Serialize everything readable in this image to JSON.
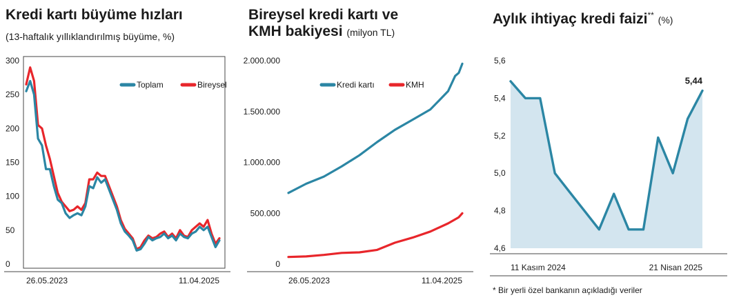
{
  "chart_data": [
    {
      "type": "line",
      "title": "Kredi kartı büyüme hızları",
      "subtitle": "(13-haftalık yıllıklandırılmış büyüme, %)",
      "ylim": [
        0,
        300
      ],
      "yticks": [
        "300",
        "250",
        "200",
        "150",
        "100",
        "50",
        "0"
      ],
      "xlim": [
        "2023-05-26",
        "2025-04-11"
      ],
      "xtick_labels": [
        "26.05.2023",
        "11.04.2025"
      ],
      "legend_position": "top-right",
      "grid": false,
      "series": [
        {
          "name": "Toplam",
          "color": "#2b86a4",
          "points": [
            [
              "2023-05-26",
              255
            ],
            [
              "2023-06-09",
              270
            ],
            [
              "2023-06-23",
              250
            ],
            [
              "2023-07-07",
              185
            ],
            [
              "2023-07-21",
              175
            ],
            [
              "2023-08-04",
              140
            ],
            [
              "2023-08-18",
              140
            ],
            [
              "2023-09-01",
              115
            ],
            [
              "2023-09-15",
              95
            ],
            [
              "2023-09-29",
              90
            ],
            [
              "2023-10-13",
              75
            ],
            [
              "2023-10-27",
              68
            ],
            [
              "2023-11-10",
              72
            ],
            [
              "2023-11-24",
              75
            ],
            [
              "2023-12-08",
              72
            ],
            [
              "2023-12-22",
              85
            ],
            [
              "2024-01-05",
              115
            ],
            [
              "2024-01-19",
              112
            ],
            [
              "2024-02-02",
              128
            ],
            [
              "2024-02-16",
              120
            ],
            [
              "2024-03-01",
              125
            ],
            [
              "2024-03-15",
              110
            ],
            [
              "2024-03-29",
              95
            ],
            [
              "2024-04-12",
              80
            ],
            [
              "2024-04-26",
              60
            ],
            [
              "2024-05-10",
              48
            ],
            [
              "2024-05-24",
              42
            ],
            [
              "2024-06-07",
              35
            ],
            [
              "2024-06-21",
              20
            ],
            [
              "2024-07-05",
              22
            ],
            [
              "2024-07-19",
              30
            ],
            [
              "2024-08-02",
              40
            ],
            [
              "2024-08-16",
              35
            ],
            [
              "2024-08-30",
              38
            ],
            [
              "2024-09-13",
              40
            ],
            [
              "2024-09-27",
              45
            ],
            [
              "2024-10-11",
              38
            ],
            [
              "2024-10-25",
              42
            ],
            [
              "2024-11-08",
              35
            ],
            [
              "2024-11-22",
              45
            ],
            [
              "2024-12-06",
              40
            ],
            [
              "2024-12-20",
              38
            ],
            [
              "2025-01-03",
              45
            ],
            [
              "2025-01-17",
              48
            ],
            [
              "2025-01-31",
              55
            ],
            [
              "2025-02-14",
              50
            ],
            [
              "2025-02-28",
              55
            ],
            [
              "2025-03-14",
              40
            ],
            [
              "2025-03-28",
              25
            ],
            [
              "2025-04-11",
              35
            ]
          ]
        },
        {
          "name": "Bireysel",
          "color": "#e8262b",
          "points": [
            [
              "2023-05-26",
              265
            ],
            [
              "2023-06-09",
              290
            ],
            [
              "2023-06-23",
              270
            ],
            [
              "2023-07-07",
              205
            ],
            [
              "2023-07-21",
              200
            ],
            [
              "2023-08-04",
              175
            ],
            [
              "2023-08-18",
              155
            ],
            [
              "2023-09-01",
              130
            ],
            [
              "2023-09-15",
              105
            ],
            [
              "2023-09-29",
              92
            ],
            [
              "2023-10-13",
              85
            ],
            [
              "2023-10-27",
              78
            ],
            [
              "2023-11-10",
              80
            ],
            [
              "2023-11-24",
              85
            ],
            [
              "2023-12-08",
              80
            ],
            [
              "2023-12-22",
              90
            ],
            [
              "2024-01-05",
              125
            ],
            [
              "2024-01-19",
              125
            ],
            [
              "2024-02-02",
              135
            ],
            [
              "2024-02-16",
              130
            ],
            [
              "2024-03-01",
              130
            ],
            [
              "2024-03-15",
              115
            ],
            [
              "2024-03-29",
              100
            ],
            [
              "2024-04-12",
              85
            ],
            [
              "2024-04-26",
              65
            ],
            [
              "2024-05-10",
              52
            ],
            [
              "2024-05-24",
              45
            ],
            [
              "2024-06-07",
              38
            ],
            [
              "2024-06-21",
              22
            ],
            [
              "2024-07-05",
              25
            ],
            [
              "2024-07-19",
              35
            ],
            [
              "2024-08-02",
              42
            ],
            [
              "2024-08-16",
              38
            ],
            [
              "2024-08-30",
              40
            ],
            [
              "2024-09-13",
              45
            ],
            [
              "2024-09-27",
              48
            ],
            [
              "2024-10-11",
              40
            ],
            [
              "2024-10-25",
              45
            ],
            [
              "2024-11-08",
              38
            ],
            [
              "2024-11-22",
              50
            ],
            [
              "2024-12-06",
              42
            ],
            [
              "2024-12-20",
              40
            ],
            [
              "2025-01-03",
              50
            ],
            [
              "2025-01-17",
              55
            ],
            [
              "2025-01-31",
              60
            ],
            [
              "2025-02-14",
              55
            ],
            [
              "2025-02-28",
              65
            ],
            [
              "2025-03-14",
              45
            ],
            [
              "2025-03-28",
              30
            ],
            [
              "2025-04-11",
              38
            ]
          ]
        }
      ]
    },
    {
      "type": "line",
      "title": "Bireysel kredi kartı ve KMH bakiyesi",
      "title_lines": [
        "Bireysel kredi kartı ve",
        "KMH bakiyesi"
      ],
      "unit": "(milyon TL)",
      "ylim": [
        0,
        2000000
      ],
      "yticks": [
        "2.000.000",
        "1.500.000",
        "1.000.000",
        "500.000",
        "0"
      ],
      "xlim": [
        "2023-05-26",
        "2025-04-11"
      ],
      "xtick_labels": [
        "26.05.2023",
        "11.04.2025"
      ],
      "legend_position": "top-right",
      "grid": false,
      "series": [
        {
          "name": "Kredi kartı",
          "color": "#2b86a4",
          "points": [
            [
              "2023-05-26",
              700000
            ],
            [
              "2023-08-04",
              790000
            ],
            [
              "2023-10-13",
              860000
            ],
            [
              "2023-12-22",
              960000
            ],
            [
              "2024-03-01",
              1070000
            ],
            [
              "2024-05-10",
              1200000
            ],
            [
              "2024-07-19",
              1320000
            ],
            [
              "2024-09-27",
              1420000
            ],
            [
              "2024-12-06",
              1520000
            ],
            [
              "2025-02-14",
              1700000
            ],
            [
              "2025-03-14",
              1850000
            ],
            [
              "2025-03-28",
              1880000
            ],
            [
              "2025-04-11",
              1970000
            ]
          ]
        },
        {
          "name": "KMH",
          "color": "#e8262b",
          "points": [
            [
              "2023-05-26",
              70000
            ],
            [
              "2023-08-04",
              75000
            ],
            [
              "2023-10-13",
              90000
            ],
            [
              "2023-12-22",
              110000
            ],
            [
              "2024-03-01",
              115000
            ],
            [
              "2024-05-10",
              140000
            ],
            [
              "2024-07-19",
              210000
            ],
            [
              "2024-09-27",
              260000
            ],
            [
              "2024-12-06",
              320000
            ],
            [
              "2025-02-14",
              400000
            ],
            [
              "2025-03-14",
              440000
            ],
            [
              "2025-03-28",
              460000
            ],
            [
              "2025-04-11",
              500000
            ]
          ]
        }
      ]
    },
    {
      "type": "area",
      "title": "Aylık ihtiyaç kredi faizi",
      "title_suffix": "**",
      "unit": "(%)",
      "ylim": [
        4.6,
        5.6
      ],
      "yticks": [
        "5,6",
        "5,4",
        "5,2",
        "5,0",
        "4,8",
        "4,6"
      ],
      "xtick_labels": [
        "11 Kasım 2024",
        "21 Nisan 2025"
      ],
      "grid": false,
      "color": "#2b86a4",
      "fill": "#d3e5ef",
      "end_label": "5,44",
      "points": [
        5.49,
        5.4,
        5.4,
        5.0,
        4.9,
        4.8,
        4.7,
        4.89,
        4.7,
        4.7,
        5.19,
        5.0,
        5.29,
        5.44
      ],
      "footnote": "* Bir yerli özel bankanın açıkladığı veriler"
    }
  ]
}
